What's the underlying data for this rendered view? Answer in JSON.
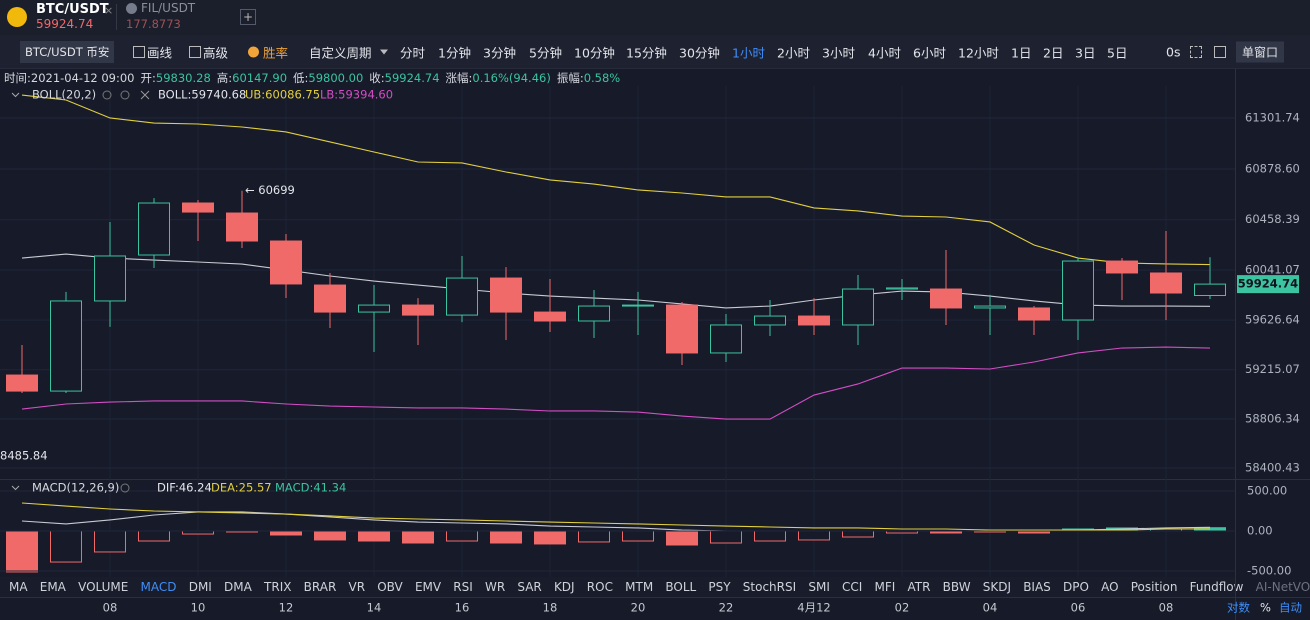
{
  "header": {
    "tabs": [
      {
        "symbol": "BTC/USDT",
        "price": "59924.74",
        "close_icon": "×"
      },
      {
        "symbol": "FIL/USDT",
        "price": "177.8773"
      }
    ],
    "add_button": "+"
  },
  "toolbar": {
    "symbol_button": "BTC/USDT 币安",
    "draw": "画线",
    "advanced": "高级",
    "win_rate": "胜率",
    "custom_period": "自定义周期",
    "periods": [
      "分时",
      "1分钟",
      "3分钟",
      "5分钟",
      "10分钟",
      "15分钟",
      "30分钟",
      "1小时",
      "2小时",
      "3小时",
      "4小时",
      "6小时",
      "12小时",
      "1日",
      "2日",
      "3日",
      "5日"
    ],
    "active_period": 7,
    "timer": "0s",
    "window_mode": "单窗口"
  },
  "info_bar": {
    "time": "时间:2021-04-12 09:00",
    "fields": [
      {
        "label": "开:",
        "value": "59830.28"
      },
      {
        "label": "高:",
        "value": "60147.90"
      },
      {
        "label": "低:",
        "value": "59800.00"
      },
      {
        "label": "收:",
        "value": "59924.74"
      },
      {
        "label": "涨幅:",
        "value": "0.16%(94.46)"
      },
      {
        "label": "振幅:",
        "value": "0.58%"
      }
    ]
  },
  "boll_legend": {
    "name": "BOLL(20,2)",
    "mid": "BOLL:59740.68",
    "upper": "UB:60086.75",
    "lower": "LB:59394.60"
  },
  "macd_legend": {
    "name": "MACD(12,26,9)",
    "dif": "DIF:46.24",
    "dea": "DEA:25.57",
    "macd": "MACD:41.34"
  },
  "price": {
    "type": "candlestick",
    "categories": [
      null,
      null,
      "08",
      null,
      "10",
      null,
      "12",
      null,
      "14",
      null,
      "16",
      null,
      "18",
      null,
      "20",
      null,
      "22",
      null,
      "4月12",
      null,
      "02",
      null,
      "04",
      null,
      "06",
      null,
      "08",
      null
    ],
    "open": [
      59171,
      59038,
      59785,
      60166,
      60597,
      60514,
      60282,
      59917,
      59693,
      59751,
      59668,
      59975,
      59693,
      59619,
      59743,
      59751,
      59354,
      59586,
      59660,
      59586,
      59884,
      59884,
      59727,
      59727,
      59627,
      60116,
      60017,
      59830.28
    ],
    "high": [
      59420,
      59860,
      60440,
      60638,
      60622,
      60699,
      60340,
      60017,
      59917,
      59809,
      60158,
      60066,
      59967,
      59876,
      59860,
      59776,
      59677,
      59793,
      59809,
      60000,
      59967,
      60207,
      59835,
      59743,
      60141,
      60141,
      60365,
      60147.9
    ],
    "low": [
      59022,
      59022,
      59570,
      60058,
      60282,
      60224,
      59810,
      59561,
      59362,
      59420,
      59610,
      59461,
      59528,
      59478,
      59503,
      59254,
      59279,
      59495,
      59503,
      59420,
      59793,
      59586,
      59503,
      59503,
      59461,
      59793,
      59627,
      59800
    ],
    "close": [
      59038,
      59785,
      60158,
      60597,
      60522,
      60282,
      59926,
      59693,
      59751,
      59668,
      59975,
      59693,
      59619,
      59743,
      59751,
      59354,
      59586,
      59660,
      59586,
      59884,
      59893,
      59727,
      59743,
      59627,
      60116,
      60017,
      59851,
      59924.74
    ],
    "up_color": "#3cc39f",
    "down_color": "#f06a6a",
    "bands": [
      {
        "color": "#e2cf3f",
        "values": [
          61492,
          61451,
          61302,
          61260,
          61252,
          61227,
          61186,
          61103,
          61020,
          60937,
          60929,
          60854,
          60788,
          60754,
          60705,
          60680,
          60647,
          60647,
          60556,
          60531,
          60489,
          60481,
          60440,
          60249,
          60141,
          60100,
          60092,
          60086.75
        ]
      },
      {
        "color": "#c8cad3",
        "values": [
          60141,
          60174,
          60141,
          60124,
          60108,
          60091,
          60042,
          59992,
          59950,
          59917,
          59884,
          59851,
          59826,
          59809,
          59793,
          59760,
          59727,
          59743,
          59793,
          59834,
          59867,
          59859,
          59826,
          59785,
          59752,
          59743,
          59743,
          59740.68
        ]
      },
      {
        "color": "#d24ec4",
        "values": [
          58889,
          58931,
          58947,
          58956,
          58956,
          58956,
          58931,
          58914,
          58906,
          58898,
          58898,
          58889,
          58873,
          58873,
          58864,
          58831,
          58806,
          58806,
          59005,
          59097,
          59229,
          59229,
          59221,
          59279,
          59354,
          59395,
          59403,
          59394.6
        ]
      }
    ],
    "ylim": [
      58317.5,
      61699.6
    ],
    "yticks": [
      61301.74,
      60878.6,
      60458.39,
      60041.07,
      59626.64,
      59215.07,
      58806.34,
      58400.43
    ],
    "ytick_labels": [
      "61301.74",
      "60878.60",
      "60458.39",
      "60041.07",
      "59626.64",
      "59215.07",
      "58806.34",
      "58400.43"
    ],
    "annotation": "← 60699",
    "clipped_label": "8485.84"
  },
  "macd": {
    "type": "bar",
    "histogram": [
      -512,
      -388,
      -262,
      -125,
      -38,
      -12,
      -50,
      -112,
      -125,
      -150,
      -125,
      -150,
      -162,
      -137,
      -125,
      -175,
      -150,
      -125,
      -112,
      -75,
      -25,
      -25,
      -12,
      -25,
      25,
      38,
      25,
      41.34
    ],
    "dif": {
      "color": "#c8cad3",
      "values": [
        125,
        88,
        138,
        200,
        238,
        238,
        212,
        175,
        138,
        112,
        100,
        88,
        62,
        50,
        38,
        12,
        0,
        0,
        0,
        0,
        0,
        0,
        0,
        0,
        12,
        25,
        38,
        46.24
      ]
    },
    "dea": {
      "color": "#e2cf3f",
      "values": [
        350,
        312,
        275,
        250,
        238,
        225,
        212,
        188,
        162,
        150,
        138,
        125,
        112,
        100,
        88,
        75,
        62,
        50,
        38,
        38,
        25,
        25,
        12,
        12,
        12,
        12,
        25,
        25.57
      ]
    },
    "ylim": [
      -587.5,
      637.5
    ],
    "yticks": [
      {
        "value": 500,
        "label": "500.00"
      },
      {
        "value": 0,
        "label": "0.00"
      },
      {
        "value": -500,
        "label": "-500.00"
      }
    ]
  },
  "indicators": {
    "tabs": [
      "MA",
      "EMA",
      "VOLUME",
      "MACD",
      "DMI",
      "DMA",
      "TRIX",
      "BRAR",
      "VR",
      "OBV",
      "EMV",
      "RSI",
      "WR",
      "SAR",
      "KDJ",
      "ROC",
      "MTM",
      "BOLL",
      "PSY",
      "StochRSI",
      "SMI",
      "CCI",
      "MFI",
      "ATR",
      "BBW",
      "SKDJ",
      "BIAS",
      "DPO",
      "AO",
      "Position",
      "Fundflow",
      "AI-NetVOL"
    ],
    "active": 3
  },
  "axis_controls": {
    "log": "对数",
    "percent": "%",
    "auto": "自动"
  }
}
